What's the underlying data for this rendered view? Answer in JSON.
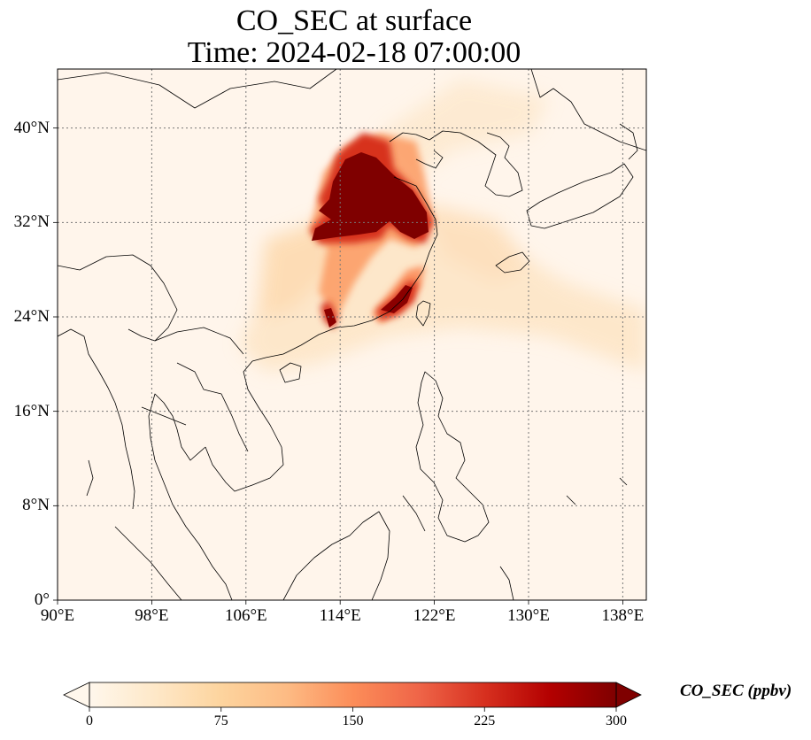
{
  "title": {
    "line1": "CO_SEC at surface",
    "line2": "Time: 2024-02-18 07:00:00"
  },
  "map": {
    "lon_range": [
      90,
      140
    ],
    "lat_range": [
      0,
      45
    ],
    "x_ticks": [
      {
        "lon": 90,
        "label": "90°E"
      },
      {
        "lon": 98,
        "label": "98°E"
      },
      {
        "lon": 106,
        "label": "106°E"
      },
      {
        "lon": 114,
        "label": "114°E"
      },
      {
        "lon": 122,
        "label": "122°E"
      },
      {
        "lon": 130,
        "label": "130°E"
      },
      {
        "lon": 138,
        "label": "138°E"
      }
    ],
    "y_ticks": [
      {
        "lat": 0,
        "label": "0°"
      },
      {
        "lat": 8,
        "label": "8°N"
      },
      {
        "lat": 16,
        "label": "16°N"
      },
      {
        "lat": 24,
        "label": "24°N"
      },
      {
        "lat": 32,
        "label": "32°N"
      },
      {
        "lat": 40,
        "label": "40°N"
      }
    ],
    "gridlines": true,
    "colormap": "OrRd",
    "background_color": "#fff5eb",
    "coastline_color": "#000000"
  },
  "colorbar": {
    "label": "CO_SEC (ppbv)",
    "min": 0,
    "max": 300,
    "extend": "both",
    "ticks": [
      {
        "value": 0,
        "label": "0"
      },
      {
        "value": 75,
        "label": "75"
      },
      {
        "value": 150,
        "label": "150"
      },
      {
        "value": 225,
        "label": "225"
      },
      {
        "value": 300,
        "label": "300"
      }
    ],
    "colors": [
      "#fff7ec",
      "#fee8c8",
      "#fdd49e",
      "#fdbb84",
      "#fc8d59",
      "#ef6548",
      "#d7301f",
      "#b30000",
      "#7f0000"
    ]
  }
}
